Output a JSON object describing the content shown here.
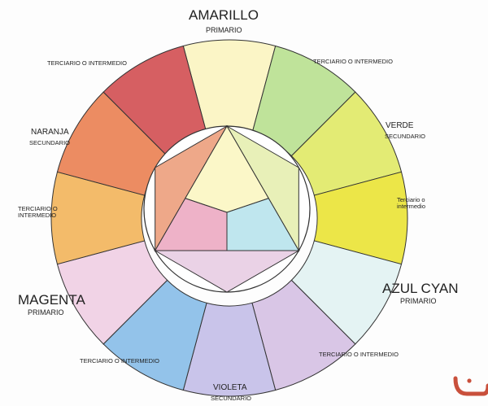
{
  "primary": {
    "amarillo": {
      "name": "AMARILLO",
      "type": "PRIMARIO"
    },
    "magenta": {
      "name": "MAGENTA",
      "type": "PRIMARIO"
    },
    "cyan": {
      "name": "AZUL CYAN",
      "type": "PRIMARIO"
    }
  },
  "secondary": {
    "naranja": {
      "name": "NARANJA",
      "type": "SECUNDARIO"
    },
    "verde": {
      "name": "VERDE",
      "type": "SECUNDARIO"
    },
    "violeta": {
      "name": "VIOLETA",
      "type": "SECUNDARIO"
    }
  },
  "tertiary": {
    "top_left": "TERCIARIO O INTERMEDIO",
    "top_right": "TERCIARIO O INTERMEDIO",
    "left_line1": "TERCIARIO O",
    "left_line2": "INTERMEDIO",
    "right_line1": "Terciario o",
    "right_line2": "intermedio",
    "bottom_left": "TERCIARIO O INTERMEDIO",
    "bottom_right": "TERCIARIO O INTERMEDIO"
  },
  "wheel_colors": [
    "#fbf5c6",
    "#bfe39a",
    "#e3eb74",
    "#ece648",
    "#e4f3f3",
    "#d9c6e6",
    "#c9c4ea",
    "#93c3ea",
    "#f1d3e6",
    "#f3bb6a",
    "#ec8c62",
    "#d65f62"
  ],
  "inner_colors": {
    "top": "#fbf7c8",
    "left": "#eea889",
    "right": "#e8f0b8",
    "pink": "#eeb2c8",
    "cyan": "#bfe6ee",
    "bottom": "#ead2e6"
  },
  "corner_logo": {
    "color": "#c9503c"
  }
}
